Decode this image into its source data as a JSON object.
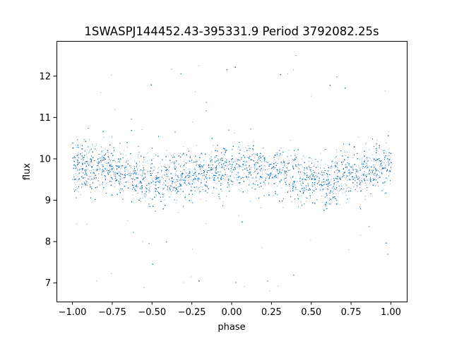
{
  "chart_data": {
    "type": "scatter",
    "title": "1SWASPJ144452.43-395331.9 Period 3792082.25s",
    "xlabel": "phase",
    "ylabel": "flux",
    "xlim": [
      -1.1,
      1.1
    ],
    "ylim": [
      6.55,
      12.85
    ],
    "xticks": [
      -1.0,
      -0.75,
      -0.5,
      -0.25,
      0.0,
      0.25,
      0.5,
      0.75,
      1.0
    ],
    "xtick_labels": [
      "−1.00",
      "−0.75",
      "−0.50",
      "−0.25",
      "0.00",
      "0.25",
      "0.50",
      "0.75",
      "1.00"
    ],
    "yticks": [
      7,
      8,
      9,
      10,
      11,
      12
    ],
    "ytick_labels": [
      "7",
      "8",
      "9",
      "10",
      "11",
      "12"
    ],
    "grid": false,
    "marker_color": "#1f77b4",
    "series": [
      {
        "phase_range": [
          -1.0,
          1.0
        ],
        "profile": {
          "phase": [
            -1.0,
            -0.9,
            -0.8,
            -0.7,
            -0.6,
            -0.5,
            -0.45,
            -0.4,
            -0.3,
            -0.2,
            -0.1,
            0.0,
            0.1,
            0.2,
            0.3,
            0.4,
            0.5,
            0.55,
            0.6,
            0.7,
            0.8,
            0.9,
            1.0
          ],
          "median_flux": [
            9.85,
            9.8,
            9.8,
            9.7,
            9.6,
            9.5,
            9.45,
            9.5,
            9.55,
            9.65,
            9.75,
            9.8,
            9.8,
            9.75,
            9.7,
            9.6,
            9.55,
            9.5,
            9.45,
            9.6,
            9.7,
            9.8,
            9.85
          ],
          "scatter_sd": 0.3
        },
        "flux_range": [
          6.8,
          12.55
        ],
        "n_points_approx": 30000
      }
    ]
  }
}
